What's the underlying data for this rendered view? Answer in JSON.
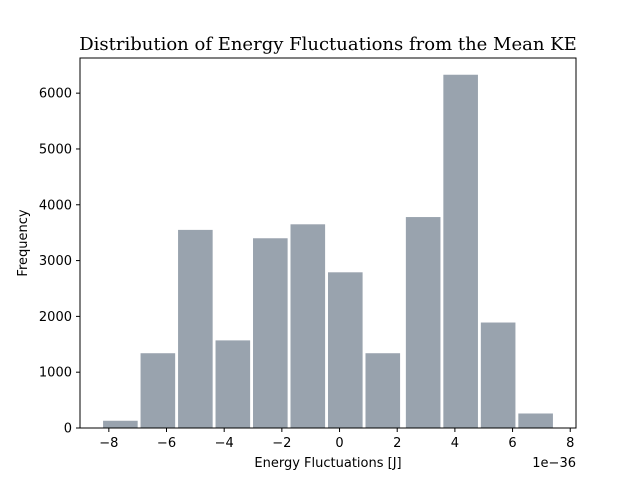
{
  "chart_data": {
    "type": "bar",
    "title": "Distribution of Energy Fluctuations from the Mean KE",
    "xlabel": "Energy Fluctuations [J]",
    "ylabel": "Frequency",
    "x_offset_label": "1e−36",
    "xlim": [
      -9.0,
      8.2
    ],
    "ylim": [
      0,
      6630
    ],
    "bar_color": "#99a3ae",
    "grid": false,
    "x_ticks": [
      {
        "value": -8,
        "label": "−8"
      },
      {
        "value": -6,
        "label": "−6"
      },
      {
        "value": -4,
        "label": "−4"
      },
      {
        "value": -2,
        "label": "−2"
      },
      {
        "value": 0,
        "label": "0"
      },
      {
        "value": 2,
        "label": "2"
      },
      {
        "value": 4,
        "label": "4"
      },
      {
        "value": 6,
        "label": "6"
      },
      {
        "value": 8,
        "label": "8"
      }
    ],
    "y_ticks": [
      {
        "value": 0,
        "label": "0"
      },
      {
        "value": 1000,
        "label": "1000"
      },
      {
        "value": 2000,
        "label": "2000"
      },
      {
        "value": 3000,
        "label": "3000"
      },
      {
        "value": 4000,
        "label": "4000"
      },
      {
        "value": 5000,
        "label": "5000"
      },
      {
        "value": 6000,
        "label": "6000"
      }
    ],
    "bins": [
      {
        "x0": -8.2,
        "x1": -7.0,
        "value": 130
      },
      {
        "x0": -6.9,
        "x1": -5.7,
        "value": 1340
      },
      {
        "x0": -5.6,
        "x1": -4.4,
        "value": 3550
      },
      {
        "x0": -4.3,
        "x1": -3.1,
        "value": 1570
      },
      {
        "x0": -3.0,
        "x1": -1.8,
        "value": 3400
      },
      {
        "x0": -1.7,
        "x1": -0.5,
        "value": 3650
      },
      {
        "x0": -0.4,
        "x1": 0.8,
        "value": 2790
      },
      {
        "x0": 0.9,
        "x1": 2.1,
        "value": 1340
      },
      {
        "x0": 2.3,
        "x1": 3.5,
        "value": 3780
      },
      {
        "x0": 3.6,
        "x1": 4.8,
        "value": 6330
      },
      {
        "x0": 4.9,
        "x1": 6.1,
        "value": 1890
      },
      {
        "x0": 6.2,
        "x1": 7.4,
        "value": 260
      }
    ]
  }
}
